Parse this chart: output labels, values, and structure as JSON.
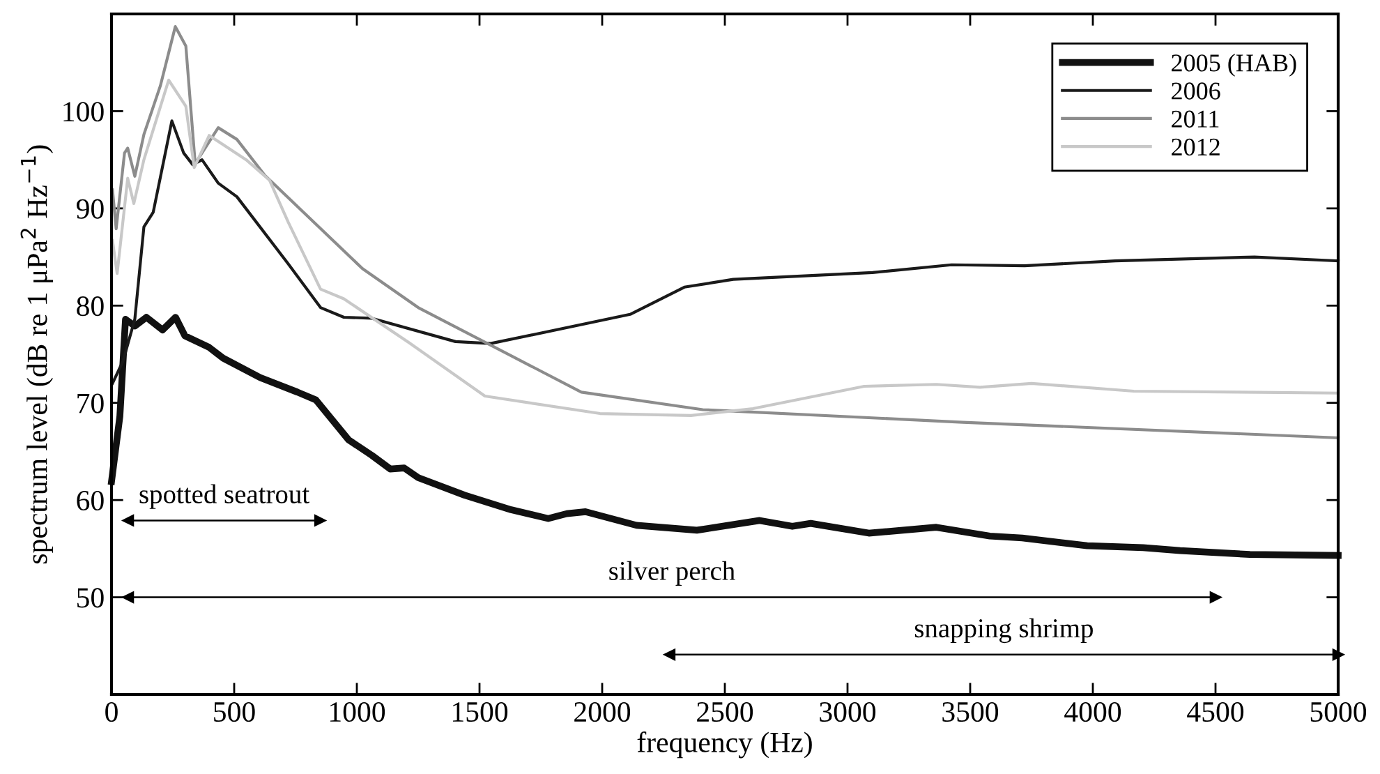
{
  "chart_data": {
    "type": "line",
    "xlabel": "frequency (Hz)",
    "ylabel": "spectrum level (dB re 1 μPa$^{2}$ Hz$^{−1}$)",
    "xlim": [
      0,
      5000
    ],
    "ylim": [
      40,
      110
    ],
    "xticks": [
      0,
      500,
      1000,
      1500,
      2000,
      2500,
      3000,
      3500,
      4000,
      4500,
      5000
    ],
    "yticks": [
      {
        "value": 40,
        "label": null
      },
      50,
      60,
      70,
      80,
      90,
      100,
      {
        "value": 110,
        "label": null
      }
    ],
    "grid": false,
    "legend": "top right",
    "line_style": "solid",
    "marker": "none",
    "series": [
      {
        "name": "2005 (HAB)",
        "color": "#111111",
        "x": [
          0,
          34,
          57,
          95,
          142,
          208,
          261,
          299,
          398,
          455,
          606,
          758,
          833,
          966,
          1061,
          1136,
          1193,
          1250,
          1439,
          1629,
          1780,
          1856,
          1932,
          2140,
          2386,
          2642,
          2775,
          2850,
          3087,
          3362,
          3580,
          3712,
          3977,
          4205,
          4356,
          4640,
          5000
        ],
        "values": [
          61.9,
          68.6,
          78.6,
          77.9,
          78.8,
          77.5,
          78.8,
          76.9,
          75.7,
          74.6,
          72.6,
          71.1,
          70.3,
          66.2,
          64.6,
          63.2,
          63.3,
          62.3,
          60.5,
          59.0,
          58.1,
          58.6,
          58.8,
          57.4,
          56.9,
          57.9,
          57.3,
          57.6,
          56.6,
          57.2,
          56.3,
          56.1,
          55.3,
          55.1,
          54.8,
          54.4,
          54.3
        ]
      },
      {
        "name": "2006",
        "color": "#1a1a1a",
        "x": [
          4,
          47,
          95,
          132,
          170,
          246,
          294,
          331,
          369,
          435,
          511,
          720,
          852,
          947,
          1061,
          1402,
          1545,
          2114,
          2335,
          2534,
          3102,
          3424,
          3722,
          4091,
          4659,
          5000
        ],
        "values": [
          72.0,
          74.3,
          78.6,
          88.1,
          89.6,
          99.0,
          95.7,
          94.5,
          95.0,
          92.6,
          91.2,
          84.3,
          79.8,
          78.8,
          78.7,
          76.3,
          76.1,
          79.1,
          81.9,
          82.7,
          83.4,
          84.2,
          84.1,
          84.6,
          85.0,
          84.6
        ]
      },
      {
        "name": "2011",
        "color": "#8c8c8c",
        "x": [
          4,
          19,
          53,
          66,
          95,
          132,
          199,
          260,
          303,
          341,
          435,
          511,
          625,
          1023,
          1250,
          1915,
          2410,
          3470,
          5000
        ],
        "values": [
          91.9,
          87.9,
          95.7,
          96.2,
          93.3,
          97.6,
          102.6,
          108.7,
          106.7,
          94.6,
          98.3,
          97.1,
          93.4,
          83.8,
          79.8,
          71.1,
          69.3,
          68.0,
          66.4
        ]
      },
      {
        "name": "2012",
        "color": "#c8c8c8",
        "x": [
          4,
          23,
          66,
          91,
          132,
          233,
          303,
          337,
          398,
          549,
          644,
          720,
          852,
          947,
          1212,
          1522,
          1991,
          2362,
          2614,
          3068,
          3362,
          3540,
          3750,
          4167,
          5000
        ],
        "values": [
          86.7,
          83.3,
          93.1,
          90.5,
          95.0,
          103.2,
          100.5,
          94.2,
          97.5,
          95.0,
          92.9,
          88.6,
          81.7,
          80.7,
          76.2,
          70.7,
          68.9,
          68.7,
          69.4,
          71.7,
          71.9,
          71.6,
          72.0,
          71.2,
          71.0
        ]
      },
      {
        "name": "spotted seatrout",
        "color": "#000000",
        "marker": "triangle",
        "x": [
          68,
          850
        ],
        "values": [
          57.9,
          57.9
        ]
      },
      {
        "name": "silver perch",
        "color": "#000000",
        "marker": "triangle",
        "x": [
          68,
          4500
        ],
        "values": [
          50,
          50
        ]
      },
      {
        "name": "snapping shrimp",
        "color": "#000000",
        "marker": "triangle",
        "x": [
          2275,
          5000
        ],
        "values": [
          44.1,
          44.1
        ]
      }
    ]
  }
}
